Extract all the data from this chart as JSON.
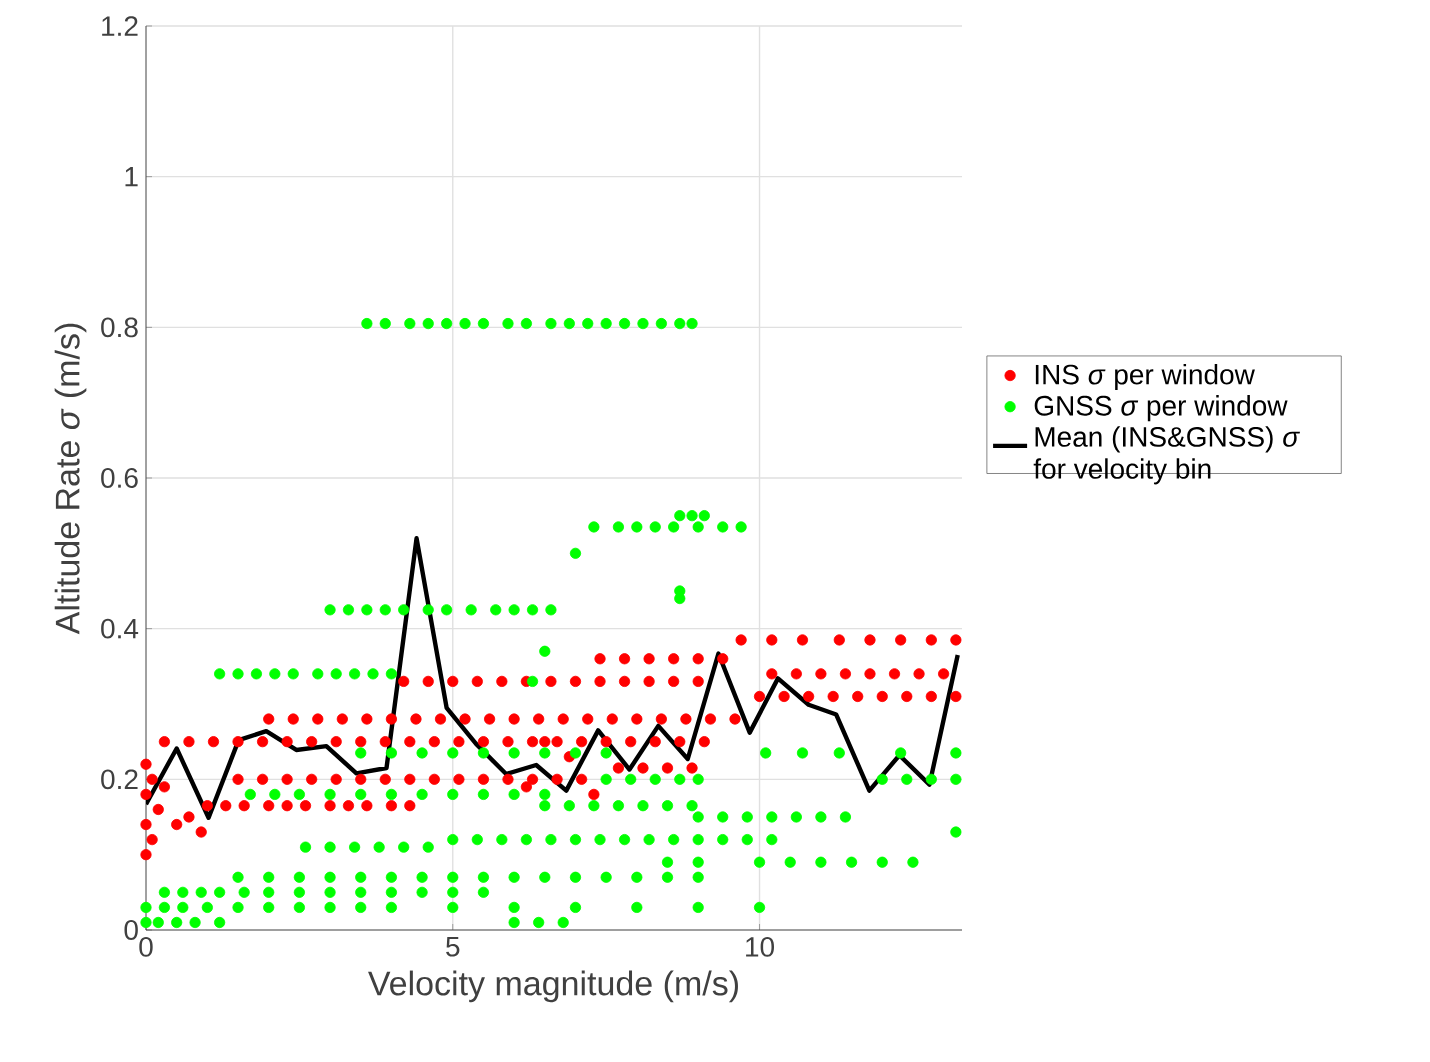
{
  "chart_data": {
    "type": "scatter",
    "xlabel": "Velocity magnitude (m/s)",
    "ylabel": "Altitude Rate *σ* (m/s)",
    "xlim": [
      0,
      13.3
    ],
    "ylim": [
      0,
      1.2
    ],
    "xticks": [
      0,
      5,
      10
    ],
    "yticks": [
      0,
      0.2,
      0.4,
      0.6,
      0.8,
      1,
      1.2
    ],
    "grid": true,
    "legend": "right",
    "series": [
      {
        "name": "INS *σ* per window",
        "color": "#ff0000",
        "marker": "circle",
        "x": [
          1.0,
          1.3,
          1.6,
          2.0,
          2.3,
          2.6,
          3.0,
          3.3,
          3.6,
          4.0,
          4.3,
          1.5,
          1.9,
          2.3,
          2.7,
          3.1,
          3.5,
          3.9,
          4.3,
          4.7,
          5.1,
          5.5,
          5.9,
          6.3,
          6.7,
          7.1,
          7.7,
          8.1,
          8.5,
          8.9,
          0.3,
          0.7,
          1.1,
          1.5,
          1.9,
          2.3,
          2.7,
          3.1,
          3.5,
          3.9,
          4.3,
          4.7,
          5.1,
          5.5,
          5.9,
          6.3,
          6.7,
          7.1,
          7.5,
          7.9,
          8.3,
          8.7,
          9.1,
          2.0,
          2.4,
          2.8,
          3.2,
          3.6,
          4.0,
          4.4,
          4.8,
          5.2,
          5.6,
          6.0,
          6.4,
          6.8,
          7.2,
          7.6,
          8.0,
          8.4,
          8.8,
          9.2,
          9.6,
          10.0,
          10.4,
          10.8,
          11.2,
          11.6,
          12.0,
          12.4,
          12.8,
          13.2,
          4.2,
          4.6,
          5.0,
          5.4,
          5.8,
          6.2,
          6.6,
          7.0,
          7.4,
          7.8,
          8.2,
          8.6,
          9.0,
          10.2,
          10.6,
          11.0,
          11.4,
          11.8,
          12.2,
          12.6,
          13.0,
          7.4,
          7.8,
          8.2,
          8.6,
          9.0,
          9.4,
          9.7,
          10.2,
          10.7,
          11.3,
          11.8,
          12.3,
          12.8,
          13.2,
          0,
          0,
          0,
          0,
          0.1,
          0.1,
          0.2,
          0.3,
          0.5,
          0.7,
          0.9,
          6.2,
          6.5,
          6.9,
          7.3
        ],
        "values": [
          0.165,
          0.165,
          0.165,
          0.165,
          0.165,
          0.165,
          0.165,
          0.165,
          0.165,
          0.165,
          0.165,
          0.2,
          0.2,
          0.2,
          0.2,
          0.2,
          0.2,
          0.2,
          0.2,
          0.2,
          0.2,
          0.2,
          0.2,
          0.2,
          0.2,
          0.2,
          0.215,
          0.215,
          0.215,
          0.215,
          0.25,
          0.25,
          0.25,
          0.25,
          0.25,
          0.25,
          0.25,
          0.25,
          0.25,
          0.25,
          0.25,
          0.25,
          0.25,
          0.25,
          0.25,
          0.25,
          0.25,
          0.25,
          0.25,
          0.25,
          0.25,
          0.25,
          0.25,
          0.28,
          0.28,
          0.28,
          0.28,
          0.28,
          0.28,
          0.28,
          0.28,
          0.28,
          0.28,
          0.28,
          0.28,
          0.28,
          0.28,
          0.28,
          0.28,
          0.28,
          0.28,
          0.28,
          0.28,
          0.31,
          0.31,
          0.31,
          0.31,
          0.31,
          0.31,
          0.31,
          0.31,
          0.31,
          0.33,
          0.33,
          0.33,
          0.33,
          0.33,
          0.33,
          0.33,
          0.33,
          0.33,
          0.33,
          0.33,
          0.33,
          0.33,
          0.34,
          0.34,
          0.34,
          0.34,
          0.34,
          0.34,
          0.34,
          0.34,
          0.36,
          0.36,
          0.36,
          0.36,
          0.36,
          0.36,
          0.385,
          0.385,
          0.385,
          0.385,
          0.385,
          0.385,
          0.385,
          0.385,
          0.1,
          0.14,
          0.18,
          0.22,
          0.12,
          0.2,
          0.16,
          0.19,
          0.14,
          0.15,
          0.13,
          0.19,
          0.25,
          0.23,
          0.18
        ]
      },
      {
        "name": "GNSS *σ* per window",
        "color": "#00ff00",
        "marker": "circle",
        "x": [
          3.6,
          3.9,
          4.3,
          4.6,
          4.9,
          5.2,
          5.5,
          5.9,
          6.2,
          6.6,
          6.9,
          7.2,
          7.5,
          7.8,
          8.1,
          8.4,
          8.7,
          8.9,
          8.7,
          8.9,
          9.1,
          7.3,
          7.7,
          8.0,
          8.3,
          8.6,
          9.0,
          9.4,
          9.7,
          7.0,
          8.7,
          8.7,
          3.0,
          3.3,
          3.6,
          3.9,
          4.2,
          4.6,
          4.9,
          5.3,
          5.7,
          6.0,
          6.3,
          6.6,
          6.5,
          6.3,
          1.2,
          1.5,
          1.8,
          2.1,
          2.4,
          2.8,
          3.1,
          3.4,
          3.7,
          4.0,
          3.5,
          4.0,
          4.5,
          5.0,
          5.5,
          6.0,
          6.5,
          7.0,
          7.5,
          10.1,
          10.7,
          11.3,
          12.3,
          13.2,
          1.7,
          2.1,
          2.5,
          3.0,
          3.5,
          4.0,
          4.5,
          5.0,
          5.5,
          6.0,
          6.5,
          7.5,
          7.9,
          8.3,
          8.7,
          9.0,
          12.0,
          12.4,
          12.8,
          13.2,
          6.5,
          6.9,
          7.3,
          7.7,
          8.1,
          8.5,
          8.9,
          9.0,
          9.4,
          9.8,
          10.2,
          10.6,
          11.0,
          11.4,
          5.0,
          5.4,
          5.8,
          6.2,
          6.6,
          7.0,
          7.4,
          7.8,
          8.2,
          8.6,
          9.0,
          9.4,
          9.8,
          10.2,
          2.6,
          3.0,
          3.4,
          3.8,
          4.2,
          4.6,
          8.5,
          9.0,
          10.0,
          10.5,
          11.0,
          11.5,
          12.0,
          12.5,
          1.5,
          2.0,
          2.5,
          3.0,
          3.5,
          4.0,
          4.5,
          5.0,
          5.5,
          6.0,
          6.5,
          7.0,
          7.5,
          8.0,
          8.5,
          9.0,
          0.3,
          0.6,
          0.9,
          1.2,
          1.6,
          2.0,
          2.5,
          3.0,
          3.5,
          4.0,
          4.5,
          5.0,
          5.5,
          0.0,
          0.3,
          0.6,
          1.0,
          1.5,
          2.0,
          2.5,
          3.0,
          3.5,
          4.0,
          5.0,
          6.0,
          7.0,
          8.0,
          9.0,
          10.0,
          0.0,
          0.2,
          0.5,
          0.8,
          1.2,
          6.0,
          6.4,
          6.8,
          13.2
        ],
        "values": [
          0.805,
          0.805,
          0.805,
          0.805,
          0.805,
          0.805,
          0.805,
          0.805,
          0.805,
          0.805,
          0.805,
          0.805,
          0.805,
          0.805,
          0.805,
          0.805,
          0.805,
          0.805,
          0.55,
          0.55,
          0.55,
          0.535,
          0.535,
          0.535,
          0.535,
          0.535,
          0.535,
          0.535,
          0.535,
          0.5,
          0.45,
          0.44,
          0.425,
          0.425,
          0.425,
          0.425,
          0.425,
          0.425,
          0.425,
          0.425,
          0.425,
          0.425,
          0.425,
          0.425,
          0.37,
          0.33,
          0.34,
          0.34,
          0.34,
          0.34,
          0.34,
          0.34,
          0.34,
          0.34,
          0.34,
          0.34,
          0.235,
          0.235,
          0.235,
          0.235,
          0.235,
          0.235,
          0.235,
          0.235,
          0.235,
          0.235,
          0.235,
          0.235,
          0.235,
          0.235,
          0.18,
          0.18,
          0.18,
          0.18,
          0.18,
          0.18,
          0.18,
          0.18,
          0.18,
          0.18,
          0.18,
          0.2,
          0.2,
          0.2,
          0.2,
          0.2,
          0.2,
          0.2,
          0.2,
          0.2,
          0.165,
          0.165,
          0.165,
          0.165,
          0.165,
          0.165,
          0.165,
          0.15,
          0.15,
          0.15,
          0.15,
          0.15,
          0.15,
          0.15,
          0.12,
          0.12,
          0.12,
          0.12,
          0.12,
          0.12,
          0.12,
          0.12,
          0.12,
          0.12,
          0.12,
          0.12,
          0.12,
          0.12,
          0.11,
          0.11,
          0.11,
          0.11,
          0.11,
          0.11,
          0.09,
          0.09,
          0.09,
          0.09,
          0.09,
          0.09,
          0.09,
          0.09,
          0.07,
          0.07,
          0.07,
          0.07,
          0.07,
          0.07,
          0.07,
          0.07,
          0.07,
          0.07,
          0.07,
          0.07,
          0.07,
          0.07,
          0.07,
          0.07,
          0.05,
          0.05,
          0.05,
          0.05,
          0.05,
          0.05,
          0.05,
          0.05,
          0.05,
          0.05,
          0.05,
          0.05,
          0.05,
          0.03,
          0.03,
          0.03,
          0.03,
          0.03,
          0.03,
          0.03,
          0.03,
          0.03,
          0.03,
          0.03,
          0.03,
          0.03,
          0.03,
          0.03,
          0.03,
          0.01,
          0.01,
          0.01,
          0.01,
          0.01,
          0.01,
          0.01,
          0.01,
          0.13
        ]
      },
      {
        "name": "Mean (INS&GNSS) *σ* for velocity bin",
        "color": "#000000",
        "type": "line",
        "marker": "none",
        "x": [
          0,
          0.5,
          1.02,
          1.51,
          1.96,
          2.45,
          2.94,
          3.43,
          3.92,
          4.41,
          4.9,
          5.38,
          5.87,
          6.36,
          6.85,
          7.37,
          7.88,
          8.35,
          8.83,
          9.33,
          9.84,
          10.3,
          10.8,
          11.25,
          11.79,
          12.28,
          12.77,
          13.23
        ],
        "values": [
          0.167,
          0.241,
          0.149,
          0.252,
          0.264,
          0.239,
          0.244,
          0.208,
          0.215,
          0.52,
          0.295,
          0.247,
          0.207,
          0.219,
          0.185,
          0.265,
          0.213,
          0.271,
          0.227,
          0.367,
          0.262,
          0.334,
          0.299,
          0.286,
          0.185,
          0.232,
          0.193,
          0.365
        ]
      }
    ]
  }
}
